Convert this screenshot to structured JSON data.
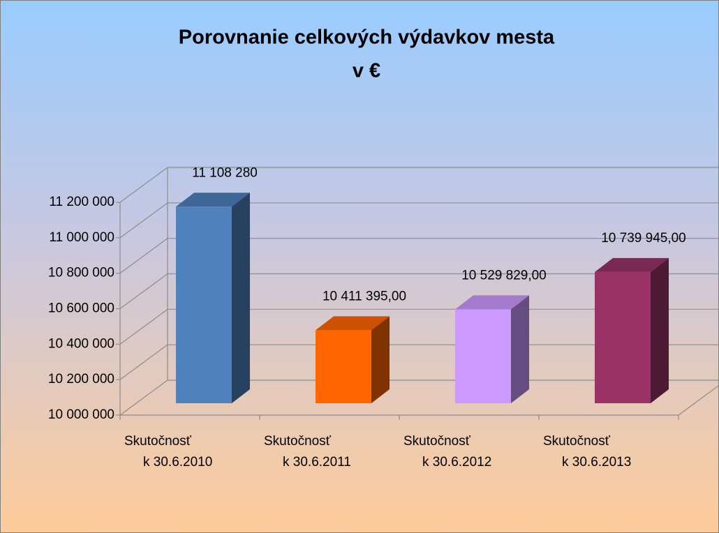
{
  "chart_data": {
    "type": "bar3d",
    "title": [
      "Porovnanie celkových výdavkov mesta",
      "v €"
    ],
    "categories": [
      [
        "Skutočnosť",
        "k 30.6.2010"
      ],
      [
        "Skutočnosť",
        "k 30.6.2011"
      ],
      [
        "Skutočnosť",
        "k 30.6.2012"
      ],
      [
        "Skutočnosť",
        "k 30.6.2013"
      ]
    ],
    "values": [
      11108280,
      10411395,
      10529829,
      10739945
    ],
    "value_labels": [
      "11 108 280",
      "10 411 395,00",
      "10 529 829,00",
      "10 739 945,00"
    ],
    "colors": [
      "#4f81bd",
      "#ff6600",
      "#cc99ff",
      "#993366"
    ],
    "ylim": [
      10000000,
      11200000
    ],
    "yticks": [
      {
        "value": 10000000,
        "label": "10 000 000"
      },
      {
        "value": 10200000,
        "label": "10 200 000"
      },
      {
        "value": 10400000,
        "label": "10 400 000"
      },
      {
        "value": 10600000,
        "label": "10 600 000"
      },
      {
        "value": 10800000,
        "label": "10 800 000"
      },
      {
        "value": 11000000,
        "label": "11 000 000"
      },
      {
        "value": 11200000,
        "label": "11 200 000"
      }
    ],
    "grid": true
  }
}
